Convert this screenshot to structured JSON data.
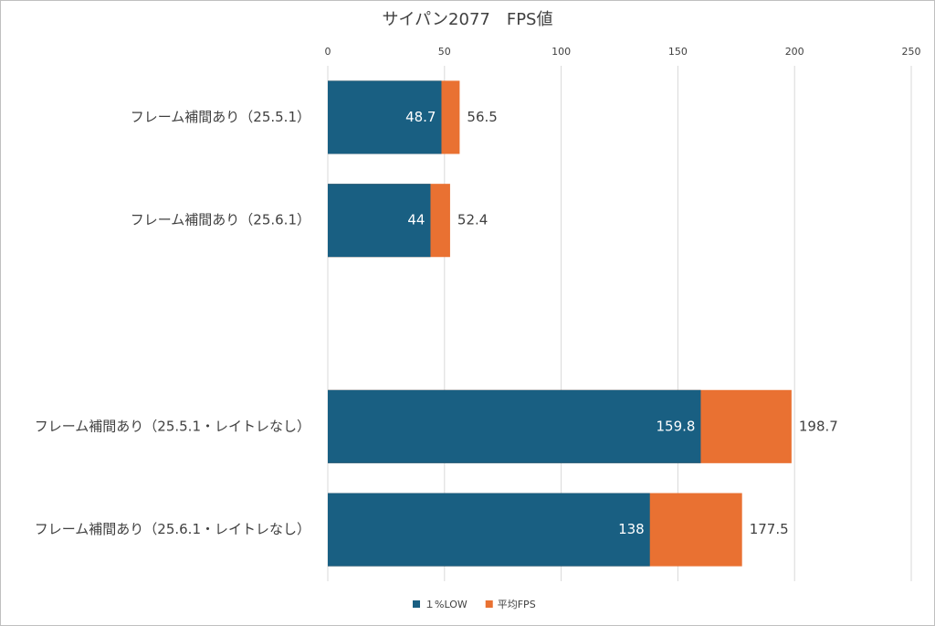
{
  "chart_data": {
    "type": "bar",
    "orientation": "horizontal",
    "title": "サイパン2077　FPS値",
    "categories": [
      "フレーム補間あり（25.5.1）",
      "フレーム補間あり（25.6.1）",
      null,
      "フレーム補間あり（25.5.1・レイトレなし）",
      "フレーム補間あり（25.6.1・レイトレなし）"
    ],
    "series": [
      {
        "name": "１%LOW",
        "color": "#195f82",
        "values": [
          48.7,
          44,
          null,
          159.8,
          138
        ]
      },
      {
        "name": "平均FPS",
        "color": "#e97132",
        "values": [
          56.5,
          52.4,
          null,
          198.7,
          177.5
        ]
      }
    ],
    "xlim": [
      0,
      250
    ],
    "xticks": [
      0,
      50,
      100,
      150,
      200,
      250
    ],
    "grid": true,
    "legend": "bottom"
  }
}
